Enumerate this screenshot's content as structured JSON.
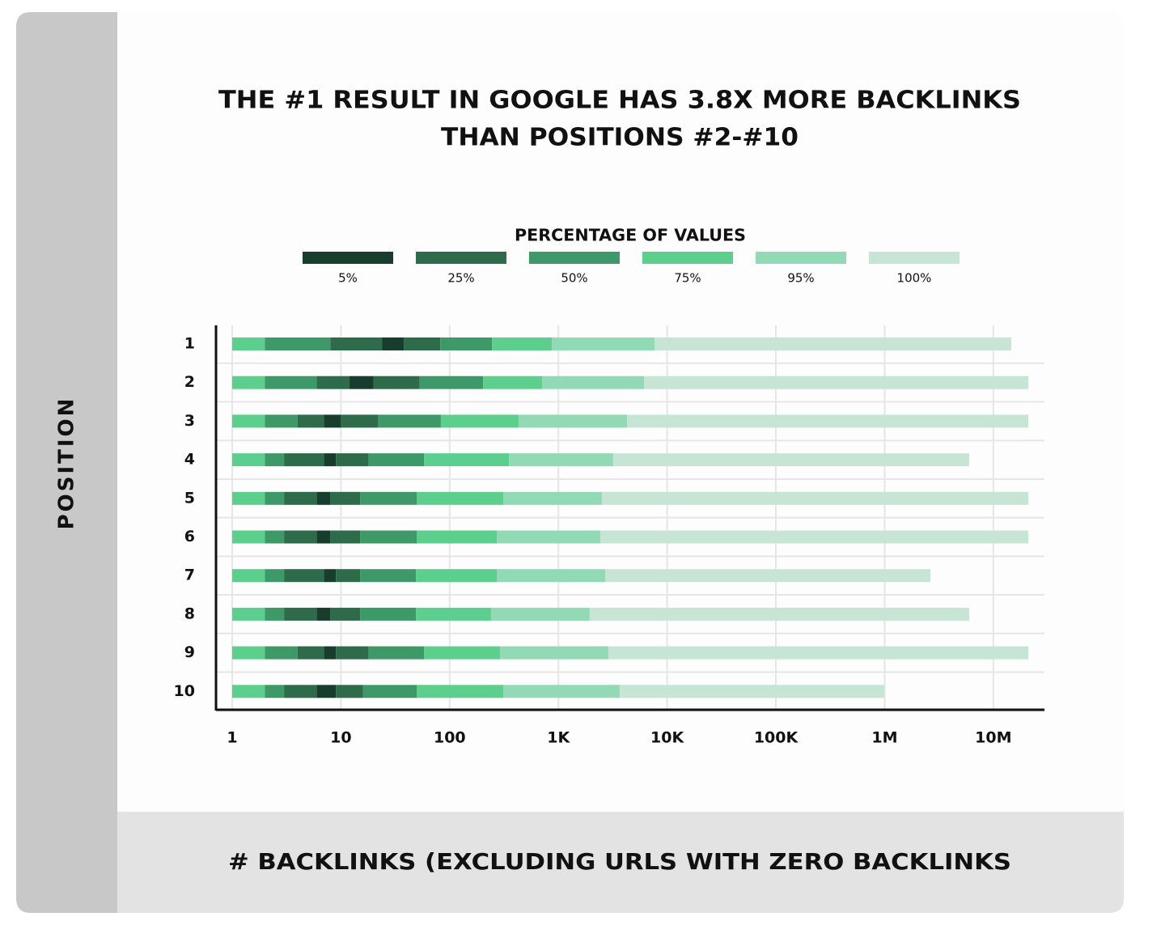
{
  "chart_data": {
    "type": "percentile_bars",
    "title": [
      "THE #1 RESULT IN GOOGLE HAS 3.8X MORE BACKLINKS",
      "THAN POSITIONS #2-#10"
    ],
    "y_label": "POSITION",
    "x_label": "# BACKLINKS (EXCLUDING URLS WITH ZERO BACKLINKS",
    "legend": {
      "title": "PERCENTAGE OF VALUES",
      "items": [
        {
          "label": "5%",
          "color": "#173d2c"
        },
        {
          "label": "25%",
          "color": "#2e6b4a"
        },
        {
          "label": "50%",
          "color": "#3d9a68"
        },
        {
          "label": "75%",
          "color": "#5ccf8d"
        },
        {
          "label": "95%",
          "color": "#92d9b6"
        },
        {
          "label": "100%",
          "color": "#c6e5d5"
        }
      ]
    },
    "segment_levels": [
      3,
      2,
      1,
      0,
      1,
      2,
      3,
      4,
      5
    ],
    "categories": [
      "1",
      "2",
      "3",
      "4",
      "5",
      "6",
      "7",
      "8",
      "9",
      "10"
    ],
    "edges": [
      [
        1,
        2,
        8,
        24,
        38,
        82,
        245,
        870,
        7700,
        14600000
      ],
      [
        1,
        2,
        6,
        12,
        20,
        53,
        203,
        707,
        6130,
        21000000
      ],
      [
        1,
        2,
        4,
        7,
        10,
        22,
        83,
        430,
        4280,
        21000000
      ],
      [
        1,
        2,
        3,
        7,
        9,
        18,
        58,
        351,
        3190,
        6000000
      ],
      [
        1,
        2,
        3,
        6,
        8,
        15,
        50,
        311,
        2510,
        21000000
      ],
      [
        1,
        2,
        3,
        6,
        8,
        15,
        50,
        271,
        2430,
        21000000
      ],
      [
        1,
        2,
        3,
        7,
        9,
        15,
        49,
        271,
        2690,
        2640000
      ],
      [
        1,
        2,
        3,
        6,
        8,
        15,
        49,
        240,
        1940,
        6000000
      ],
      [
        1,
        2,
        4,
        7,
        9,
        18,
        58,
        290,
        2880,
        21000000
      ],
      [
        1,
        2,
        3,
        6,
        9,
        16,
        50,
        311,
        3660,
        990000
      ]
    ],
    "log_x": true,
    "xlim": [
      0.71,
      29500000
    ],
    "xticks": [
      1,
      10,
      100,
      {
        "value": 1000,
        "label": "1K"
      },
      {
        "value": 10000,
        "label": "10K"
      },
      {
        "value": 100000,
        "label": "100K"
      },
      {
        "value": 1000000,
        "label": "1M"
      },
      {
        "value": 10000000,
        "label": "10M"
      }
    ],
    "grid": true
  }
}
